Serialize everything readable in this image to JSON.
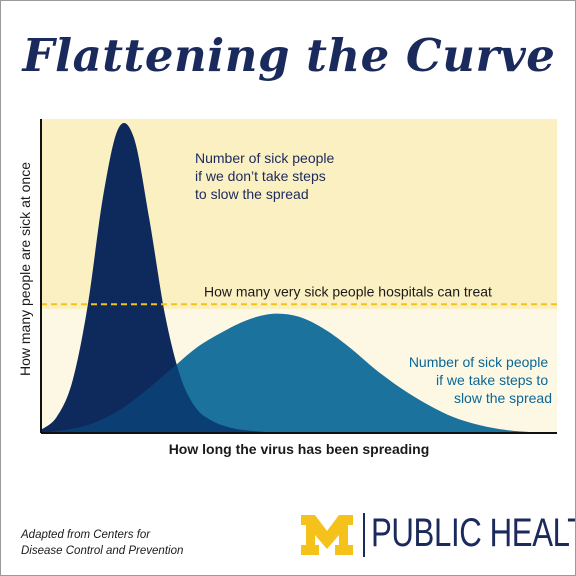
{
  "header": {
    "title": "Flattening the Curve"
  },
  "chart_data": {
    "type": "area",
    "title": "Flattening the Curve",
    "xlabel": "How long the virus has been spreading",
    "ylabel": "How many people are sick at once",
    "x_ticks": [],
    "y_ticks": [],
    "grid": false,
    "series": [
      {
        "label": [
          "Number of sick people",
          "if we don’t take steps",
          "to slow the spread"
        ],
        "color": "#0e2a5c",
        "x": [
          0,
          0.03,
          0.06,
          0.09,
          0.12,
          0.15,
          0.18,
          0.21,
          0.24,
          0.27,
          0.3,
          0.33,
          0.36,
          0.39,
          0.42,
          0.45,
          0.48,
          0.51,
          0.54
        ],
        "y": [
          0.01,
          0.05,
          0.16,
          0.4,
          0.75,
          0.97,
          0.94,
          0.68,
          0.38,
          0.18,
          0.08,
          0.04,
          0.02,
          0.01,
          0.005,
          0.002,
          0.001,
          0.0,
          0.0
        ]
      },
      {
        "label": [
          "Number of sick people",
          "if we take steps to",
          "slow the spread"
        ],
        "color": "#0a6797",
        "x": [
          0,
          0.05,
          0.1,
          0.15,
          0.2,
          0.25,
          0.3,
          0.35,
          0.4,
          0.45,
          0.5,
          0.55,
          0.6,
          0.65,
          0.7,
          0.75,
          0.8,
          0.85,
          0.9,
          0.95,
          1.0
        ],
        "y": [
          0.0,
          0.01,
          0.03,
          0.07,
          0.13,
          0.2,
          0.27,
          0.32,
          0.36,
          0.38,
          0.37,
          0.33,
          0.27,
          0.2,
          0.14,
          0.09,
          0.05,
          0.025,
          0.01,
          0.003,
          0.0
        ]
      }
    ],
    "threshold": {
      "label": "How many very sick people hospitals can treat",
      "value": 0.41,
      "color": "#f4c21b"
    },
    "ylim": [
      0,
      1.0
    ],
    "xlim": [
      0,
      1.0
    ]
  },
  "colors": {
    "title": "#1b2a5c",
    "bg_above": "#fbf0c1",
    "bg_below": "#fdf8e3",
    "logo_block": "#f4c21b"
  },
  "footer": {
    "credit_line1": "Adapted from Centers for",
    "credit_line2": "Disease Control and Prevention",
    "logo_icon": "block-m-icon",
    "logo_text": "PUBLIC HEALTH"
  }
}
